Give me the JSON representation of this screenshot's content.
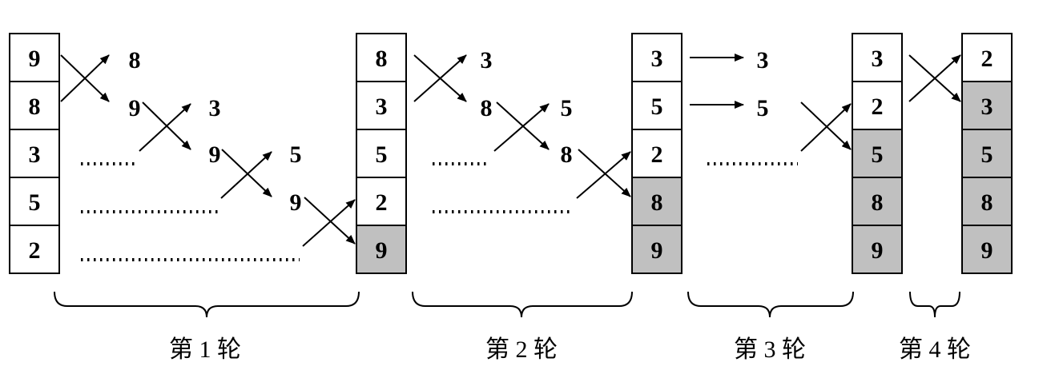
{
  "colors": {
    "sorted_fill": "#c0c0c0",
    "unsorted_fill": "#ffffff",
    "line": "#000000"
  },
  "columns": [
    {
      "name": "initial",
      "values": [
        "9",
        "8",
        "3",
        "5",
        "2"
      ],
      "sorted_count": 0
    },
    {
      "name": "after-round-1",
      "values": [
        "8",
        "3",
        "5",
        "2",
        "9"
      ],
      "sorted_count": 1
    },
    {
      "name": "after-round-2",
      "values": [
        "3",
        "5",
        "2",
        "8",
        "9"
      ],
      "sorted_count": 2
    },
    {
      "name": "after-round-3",
      "values": [
        "3",
        "2",
        "5",
        "8",
        "9"
      ],
      "sorted_count": 3
    },
    {
      "name": "after-round-4",
      "values": [
        "2",
        "3",
        "5",
        "8",
        "9"
      ],
      "sorted_count": 4
    }
  ],
  "step_numbers": {
    "round1": [
      "8",
      "9",
      "3",
      "9",
      "5",
      "9"
    ],
    "round2": [
      "3",
      "8",
      "5",
      "8"
    ],
    "round3": [
      "3",
      "5"
    ]
  },
  "round_labels": [
    "第 1 轮",
    "第 2 轮",
    "第 3 轮",
    "第 4 轮"
  ]
}
